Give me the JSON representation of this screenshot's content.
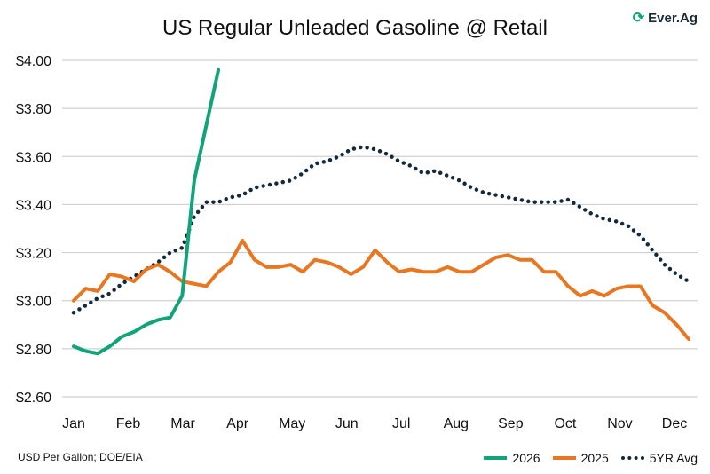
{
  "chart_data": {
    "type": "line",
    "title": "US Regular Unleaded Gasoline @ Retail",
    "xlabel": "",
    "ylabel": "",
    "ylim": [
      2.6,
      4.0
    ],
    "y_ticks": [
      "$2.60",
      "$2.80",
      "$3.00",
      "$3.20",
      "$3.40",
      "$3.60",
      "$3.80",
      "$4.00"
    ],
    "x_ticks": [
      "Jan",
      "Feb",
      "Mar",
      "Apr",
      "May",
      "Jun",
      "Jul",
      "Aug",
      "Sep",
      "Oct",
      "Nov",
      "Dec"
    ],
    "x_unit": "week of year",
    "grid": "horizontal",
    "legend_position": "bottom-right",
    "series": [
      {
        "name": "2026",
        "color": "#12a37b",
        "style": "solid",
        "values": [
          2.81,
          2.79,
          2.78,
          2.81,
          2.85,
          2.87,
          2.9,
          2.92,
          2.93,
          3.02,
          3.5,
          3.73,
          3.96
        ]
      },
      {
        "name": "2025",
        "color": "#e87722",
        "style": "solid",
        "values": [
          3.0,
          3.05,
          3.04,
          3.11,
          3.1,
          3.08,
          3.13,
          3.15,
          3.12,
          3.08,
          3.07,
          3.06,
          3.12,
          3.16,
          3.25,
          3.17,
          3.14,
          3.14,
          3.15,
          3.12,
          3.17,
          3.16,
          3.14,
          3.11,
          3.14,
          3.21,
          3.16,
          3.12,
          3.13,
          3.12,
          3.12,
          3.14,
          3.12,
          3.12,
          3.15,
          3.18,
          3.19,
          3.17,
          3.17,
          3.12,
          3.12,
          3.06,
          3.02,
          3.04,
          3.02,
          3.05,
          3.06,
          3.06,
          2.98,
          2.95,
          2.9,
          2.84
        ]
      },
      {
        "name": "5YR Avg",
        "color": "#13293d",
        "style": "dotted",
        "values": [
          2.95,
          2.98,
          3.01,
          3.03,
          3.07,
          3.1,
          3.13,
          3.16,
          3.2,
          3.22,
          3.35,
          3.41,
          3.41,
          3.43,
          3.44,
          3.47,
          3.48,
          3.49,
          3.5,
          3.53,
          3.57,
          3.58,
          3.6,
          3.63,
          3.64,
          3.63,
          3.61,
          3.58,
          3.56,
          3.53,
          3.54,
          3.52,
          3.5,
          3.47,
          3.45,
          3.44,
          3.43,
          3.42,
          3.41,
          3.41,
          3.41,
          3.42,
          3.39,
          3.36,
          3.34,
          3.33,
          3.31,
          3.27,
          3.21,
          3.15,
          3.11,
          3.08
        ]
      }
    ]
  },
  "source": "USD Per Gallon; DOE/EIA",
  "logo": "Ever.Ag"
}
